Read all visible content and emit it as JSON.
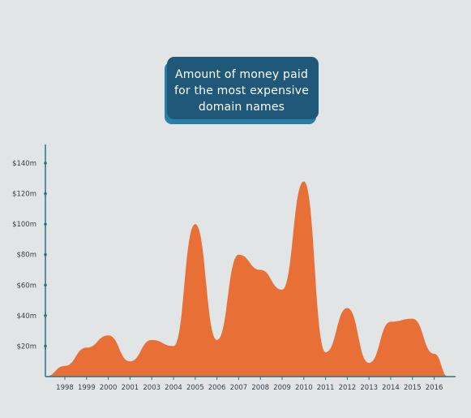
{
  "colors": {
    "background": "#e1e5e5",
    "area": "#e87036",
    "axis": "#2a6f8f",
    "badge_fill": "#1f5878",
    "badge_shadow": "#2b7da5",
    "text": "#3b4044",
    "title_text": "#ffffff"
  },
  "chart_data": {
    "type": "area",
    "title_lines": [
      "Amount of money paid",
      "for the most expensive",
      "domain names"
    ],
    "xlabel": "",
    "ylabel": "",
    "x_ticks": [
      "1998",
      "1999",
      "2000",
      "2001",
      "2003",
      "2004",
      "2005",
      "2006",
      "2007",
      "2008",
      "2009",
      "2010",
      "2011",
      "2012",
      "2013",
      "2014",
      "2015",
      "2016"
    ],
    "y_ticks": [
      "$20m",
      "$40m",
      "$60m",
      "$80m",
      "$100m",
      "$120m",
      "$140m"
    ],
    "y_tick_values": [
      20,
      40,
      60,
      80,
      100,
      120,
      140
    ],
    "ylim": [
      0,
      140
    ],
    "grid": false,
    "points": [
      {
        "x": "1997",
        "y": 0
      },
      {
        "x": "1998",
        "y": 7
      },
      {
        "x": "1999",
        "y": 19
      },
      {
        "x": "2000",
        "y": 27
      },
      {
        "x": "2001",
        "y": 10
      },
      {
        "x": "2003",
        "y": 24
      },
      {
        "x": "2004",
        "y": 20
      },
      {
        "x": "2005",
        "y": 100
      },
      {
        "x": "2006",
        "y": 24
      },
      {
        "x": "2007",
        "y": 80
      },
      {
        "x": "2008",
        "y": 70
      },
      {
        "x": "2009",
        "y": 57
      },
      {
        "x": "2010",
        "y": 128
      },
      {
        "x": "2011",
        "y": 16
      },
      {
        "x": "2012",
        "y": 45
      },
      {
        "x": "2013",
        "y": 9
      },
      {
        "x": "2014",
        "y": 36
      },
      {
        "x": "2015",
        "y": 38
      },
      {
        "x": "2016",
        "y": 15
      },
      {
        "x": "2017",
        "y": 0
      }
    ]
  }
}
